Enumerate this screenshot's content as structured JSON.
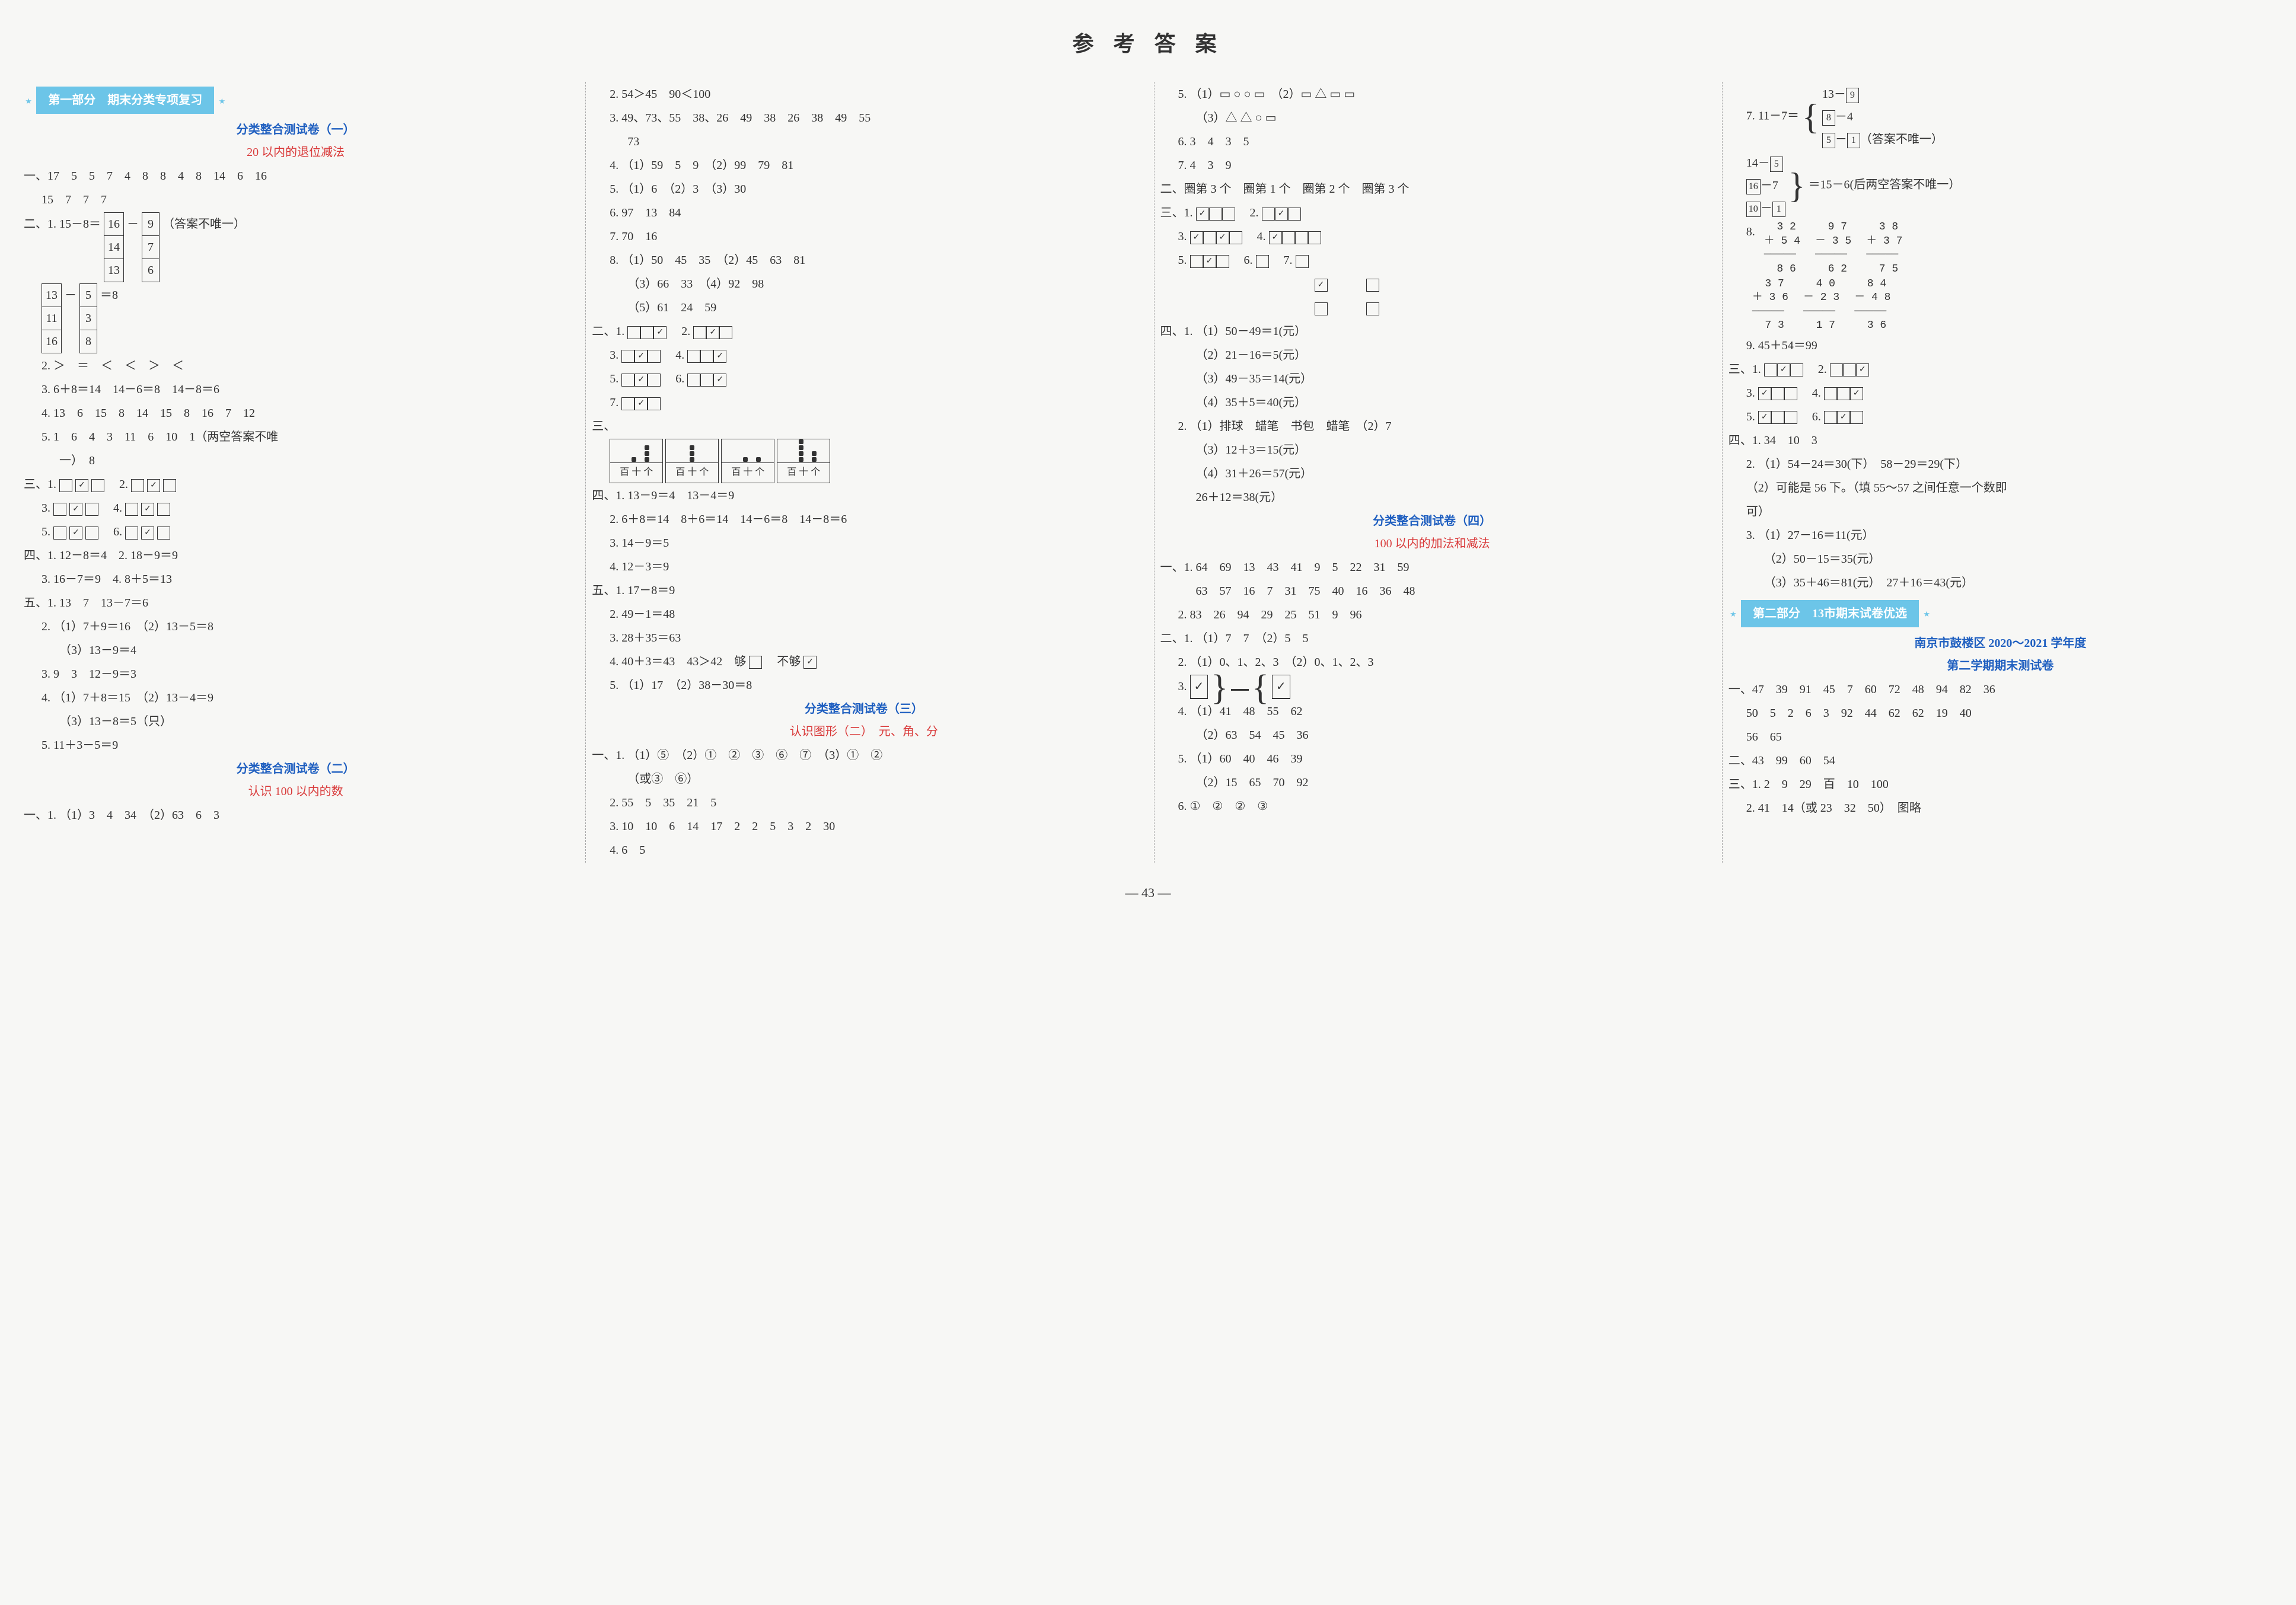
{
  "title": "参 考 答 案",
  "page_number": "— 43 —",
  "part1_banner": "第一部分　期末分类专项复习",
  "part2_banner": "第二部分　13市期末试卷优选",
  "test1_title": "分类整合测试卷（一）",
  "test1_sub": "20 以内的退位减法",
  "test2_title": "分类整合测试卷（二）",
  "test2_sub": "认识 100 以内的数",
  "test3_title": "分类整合测试卷（三）",
  "test3_sub": "认识图形（二）　元、角、分",
  "test4_title": "分类整合测试卷（四）",
  "test4_sub": "100 以内的加法和减法",
  "nanjing_title": "南京市鼓楼区 2020～2021 学年度",
  "nanjing_sub": "第二学期期末测试卷",
  "c1": {
    "l1": "一、17　5　5　7　4　8　8　4　8　14　6　16",
    "l1b": "15　7　7　7",
    "l2_prefix": "二、1. 15－8＝",
    "l2_box_a": [
      "16",
      "14",
      "13"
    ],
    "l2_box_b": [
      "9",
      "7",
      "6"
    ],
    "l2_note": "（答案不唯一）",
    "l2c_a": [
      "13",
      "11",
      "16"
    ],
    "l2c_b": [
      "5",
      "3",
      "8"
    ],
    "l2c_val": "＝8",
    "l3": "2. ＞　＝　＜　＜　＞　＜",
    "l4": "3. 6＋8＝14　14－6＝8　14－8＝6",
    "l5": "4. 13　6　15　8　14　15　8　16　7　12",
    "l6": "5. 1　6　4　3　11　6　10　1（两空答案不唯",
    "l6b": "一）　8",
    "s3_1": "三、1. ",
    "s3_2": "2. ",
    "s3_3": "3. ",
    "s3_4": "4. ",
    "s3_5": "5. ",
    "s3_6": "6. ",
    "check_cvc": [
      "",
      "✓",
      ""
    ],
    "s4": "四、1. 12－8＝4　2. 18－9＝9",
    "s4b": "3. 16－7＝9　4. 8＋5＝13",
    "s5_1": "五、1. 13　7　13－7＝6",
    "s5_2": "2. （1）7＋9＝16　（2）13－5＝8",
    "s5_2b": "（3）13－9＝4",
    "s5_3": "3. 9　3　12－9＝3",
    "s5_4": "4. （1）7＋8＝15　（2）13－4＝9",
    "s5_4b": "（3）13－8＝5（只）",
    "s5_5": "5. 11＋3－5＝9",
    "t2_1": "一、1. （1）3　4　34　（2）63　6　3"
  },
  "c2": {
    "l1": "2. 54＞45　90＜100",
    "l2": "3. 49、73、55　38、26　49　38　26　38　49　55",
    "l2b": "73",
    "l3": "4. （1）59　5　9　（2）99　79　81",
    "l4": "5. （1）6　（2）3　（3）30",
    "l5": "6. 97　13　84",
    "l6": "7. 70　16",
    "l7": "8. （1）50　45　35　（2）45　63　81",
    "l7b": "（3）66　33　（4）92　98",
    "l7c": "（5）61　24　59",
    "s2_1": "二、1. ",
    "s2_2": "2. ",
    "s2_3": "3. ",
    "s2_4": "4. ",
    "s2_5": "5. ",
    "s2_6": "6. ",
    "s2_7": "7. ",
    "check_eec": [
      "",
      "",
      "✓"
    ],
    "check_ece": [
      "",
      "✓",
      ""
    ],
    "check_ccc": [
      "✓",
      "✓",
      ""
    ],
    "check_cec": [
      "",
      "✓",
      ""
    ],
    "check_eecc": [
      "",
      "",
      "✓"
    ],
    "check_cee": [
      "✓",
      "",
      ""
    ],
    "s3": "三、",
    "abacus_label": "百 十 个",
    "s4_1": "四、1. 13－9＝4　13－4＝9",
    "s4_2": "2. 6＋8＝14　8＋6＝14　14－6＝8　14－8＝6",
    "s4_3": "3. 14－9＝5",
    "s4_4": "4. 12－3＝9",
    "s5_1": "五、1. 17－8＝9",
    "s5_2": "2. 49－1＝48",
    "s5_3": "3. 28＋35＝63",
    "s5_4a": "4. 40＋3＝43　43＞42　够",
    "s5_4b": "　不够",
    "s5_5": "5. （1）17　（2）38－30＝8",
    "t3_1": "一、1. （1）⑤　（2）①　②　③　⑥　⑦　（3）①　②",
    "t3_1b": "（或③　⑥）",
    "t3_2": "2. 55　5　35　21　5",
    "t3_3": "3. 10　10　6　14　17　2　2　5　3　2　30",
    "t3_4": "4. 6　5"
  },
  "c3": {
    "l1": "5. （1）▭ ○ ○ ▭　（2）▭ △ ▭ ▭",
    "l1b": "（3）△ △ ○ ▭",
    "l2": "6. 3　4　3　5",
    "l3": "7. 4　3　9",
    "l4": "二、圈第 3 个　圈第 1 个　圈第 2 个　圈第 3 个",
    "s3_1": "三、1. ",
    "s3_2": "2. ",
    "s3_3": "3. ",
    "s3_4": "4. ",
    "s3_5": "5. ",
    "s3_6": "6. ",
    "s3_7": "7. ",
    "s4_1": "四、1. （1）50－49＝1(元）",
    "s4_1b": "（2）21－16＝5(元）",
    "s4_1c": "（3）49－35＝14(元）",
    "s4_1d": "（4）35＋5＝40(元）",
    "s4_2": "2. （1）排球　蜡笔　书包　蜡笔　（2）7",
    "s4_2b": "（3）12＋3＝15(元）",
    "s4_2c": "（4）31＋26＝57(元）",
    "s4_2d": "26＋12＝38(元）",
    "t4_1": "一、1. 64　69　13　43　41　9　5　22　31　59",
    "t4_1b": "63　57　16　7　31　75　40　16　36　48",
    "t4_2": "2. 83　26　94　29　25　51　9　96",
    "t4_s2_1": "二、1. （1）7　7　（2）5　5",
    "t4_s2_2": "2. （1）0、1、2、3　（2）0、1、2、3",
    "t4_s2_3": "3. ",
    "t4_s2_4": "4. （1）41　48　55　62",
    "t4_s2_4b": "（2）63　54　45　36",
    "t4_s2_5": "5. （1）60　40　46　39",
    "t4_s2_5b": "（2）15　65　70　92",
    "t4_s2_6": "6. ①　②　②　③"
  },
  "c4": {
    "l7a": "7. 11－7＝",
    "l7_top": "13－",
    "l7_topb": "9",
    "l7_mid": "8",
    "l7_midb": "－4",
    "l7_bot": "5",
    "l7_botb": "－",
    "l7_botc": "1",
    "l7_botn": "（答案不唯一）",
    "l7_2a": "14－",
    "l7_2ab": "5",
    "l7_2b": "16",
    "l7_2bb": "－7",
    "l7_2c": "10",
    "l7_2cb": "－",
    "l7_2cc": "1",
    "l7_2eq": "＝15－6(后两空答案不唯一）",
    "s8": "8.",
    "ar1": "  3 2\n＋ 5 4\n─────\n  8 6",
    "ar2": "  9 7\n－ 3 5\n─────\n  6 2",
    "ar3": "  3 8\n＋ 3 7\n─────\n  7 5",
    "ar4": "  3 7\n＋ 3 6\n─────\n  7 3",
    "ar5": "  4 0\n－ 2 3\n─────\n  1 7",
    "ar6": "  8 4\n－ 4 8\n─────\n  3 6",
    "s9": "9. 45＋54＝99",
    "s3_1": "三、1. ",
    "s3_2": "2. ",
    "s3_3": "3. ",
    "s3_4": "4. ",
    "s3_5": "5. ",
    "s3_6": "6. ",
    "s4_1": "四、1. 34　10　3",
    "s4_2": "2. （1）54－24＝30(下）　58－29＝29(下）",
    "s4_2b": "（2）可能是 56 下。（填 55～57 之间任意一个数即",
    "s4_2c": "可）",
    "s4_3": "3. （1）27－16＝11(元）",
    "s4_3b": "（2）50－15＝35(元）",
    "s4_3c": "（3）35＋46＝81(元）　27＋16＝43(元）",
    "nj_1": "一、47　39　91　45　7　60　72　48　94　82　36",
    "nj_1b": "50　5　2　6　3　92　44　62　62　19　40",
    "nj_1c": "56　65",
    "nj_2": "二、43　99　60　54",
    "nj_3": "三、1. 2　9　29　百　10　100",
    "nj_3b": "2. 41　14（或 23　32　50）　图略"
  }
}
